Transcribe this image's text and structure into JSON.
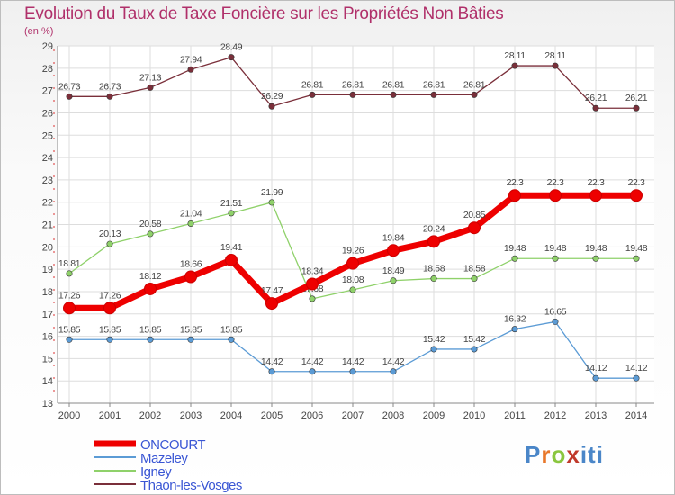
{
  "chart_data": {
    "type": "line",
    "title": "Evolution du Taux de Taxe Foncière sur les Propriétés Non Bâties",
    "unit_label": "(en %)",
    "xlabel": "",
    "ylabel": "",
    "x": [
      "2000",
      "2001",
      "2002",
      "2003",
      "2004",
      "2005",
      "2006",
      "2007",
      "2008",
      "2009",
      "2010",
      "2011",
      "2012",
      "2013",
      "2014"
    ],
    "ylim": [
      13,
      29
    ],
    "yticks": [
      13,
      14,
      15,
      16,
      17,
      18,
      19,
      20,
      21,
      22,
      23,
      24,
      25,
      26,
      27,
      28,
      29
    ],
    "grid": true,
    "legend_position": "bottom-left",
    "series": [
      {
        "name": "ONCOURT",
        "color": "#ee0000",
        "emphasis": true,
        "values": [
          17.26,
          17.26,
          18.12,
          18.66,
          19.41,
          17.47,
          18.34,
          19.26,
          19.84,
          20.24,
          20.85,
          22.3,
          22.3,
          22.3,
          22.3
        ],
        "labels": [
          "17.26",
          "17.26",
          "18.12",
          "18.66",
          "19.41",
          "17.47",
          "18.34",
          "19.26",
          "19.84",
          "20.24",
          "20.85",
          "22.3",
          "22.3",
          "22.3",
          "22.3"
        ]
      },
      {
        "name": "Mazeley",
        "color": "#5b9bd5",
        "emphasis": false,
        "values": [
          15.85,
          15.85,
          15.85,
          15.85,
          15.85,
          14.42,
          14.42,
          14.42,
          14.42,
          15.42,
          15.42,
          16.32,
          16.65,
          14.12,
          14.12
        ],
        "labels": [
          "15.85",
          "15.85",
          "15.85",
          "15.85",
          "15.85",
          "14.42",
          "14.42",
          "14.42",
          "14.42",
          "15.42",
          "15.42",
          "16.32",
          "16.65",
          "14.12",
          "14.12"
        ]
      },
      {
        "name": "Igney",
        "color": "#8fd16a",
        "emphasis": false,
        "values": [
          18.81,
          20.13,
          20.58,
          21.04,
          21.51,
          21.99,
          17.68,
          18.08,
          18.49,
          18.58,
          18.58,
          19.48,
          19.48,
          19.48,
          19.48
        ],
        "labels": [
          "18.81",
          "20.13",
          "20.58",
          "21.04",
          "21.51",
          "21.99",
          "17.68",
          "18.08",
          "18.49",
          "18.58",
          "18.58",
          "19.48",
          "19.48",
          "19.48",
          "19.48"
        ]
      },
      {
        "name": "Thaon-les-Vosges",
        "color": "#7a2f3a",
        "emphasis": false,
        "values": [
          26.73,
          26.73,
          27.13,
          27.94,
          28.49,
          26.29,
          26.81,
          26.81,
          26.81,
          26.81,
          26.81,
          28.11,
          28.11,
          26.21,
          26.21
        ],
        "labels": [
          "26.73",
          "26.73",
          "27.13",
          "27.94",
          "28.49",
          "26.29",
          "26.81",
          "26.81",
          "26.81",
          "26.81",
          "26.81",
          "28.11",
          "28.11",
          "26.21",
          "26.21"
        ]
      }
    ]
  },
  "logo": {
    "p": "P",
    "r": "r",
    "o": "o",
    "x": "x",
    "i": "iti"
  }
}
